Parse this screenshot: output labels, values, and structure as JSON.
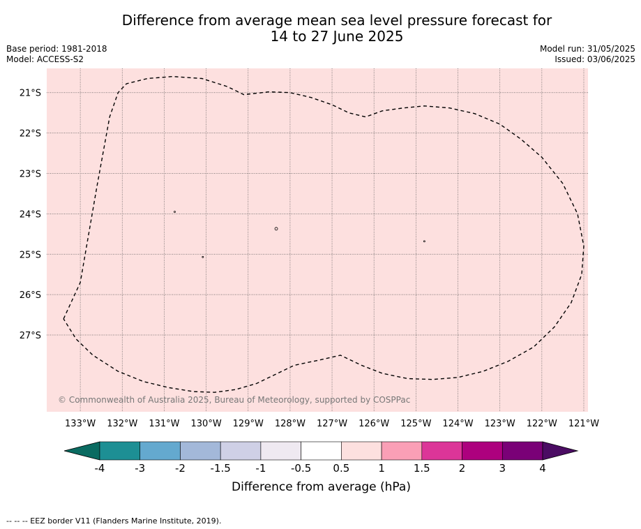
{
  "title_line1": "Difference from average mean sea level pressure forecast for",
  "title_line2": "14 to 27 June 2025",
  "info_left": {
    "base_period": "Base period: 1981-2018",
    "model": "Model: ACCESS-S2"
  },
  "info_right": {
    "model_run": "Model run: 31/05/2025",
    "issued": "Issued: 03/06/2025"
  },
  "map": {
    "background_color": "#fde0df",
    "lon_range": [
      -133.8,
      -120.9
    ],
    "lat_range": [
      -28.9,
      -20.4
    ],
    "lon_ticks": [
      {
        "value": -133,
        "label": "133°W"
      },
      {
        "value": -132,
        "label": "132°W"
      },
      {
        "value": -131,
        "label": "131°W"
      },
      {
        "value": -130,
        "label": "130°W"
      },
      {
        "value": -129,
        "label": "129°W"
      },
      {
        "value": -128,
        "label": "128°W"
      },
      {
        "value": -127,
        "label": "127°W"
      },
      {
        "value": -126,
        "label": "126°W"
      },
      {
        "value": -125,
        "label": "125°W"
      },
      {
        "value": -124,
        "label": "124°W"
      },
      {
        "value": -123,
        "label": "123°W"
      },
      {
        "value": -122,
        "label": "122°W"
      },
      {
        "value": -121,
        "label": "121°W"
      }
    ],
    "lat_ticks": [
      {
        "value": -21,
        "label": "21°S"
      },
      {
        "value": -22,
        "label": "22°S"
      },
      {
        "value": -23,
        "label": "23°S"
      },
      {
        "value": -24,
        "label": "24°S"
      },
      {
        "value": -25,
        "label": "25°S"
      },
      {
        "value": -26,
        "label": "26°S"
      },
      {
        "value": -27,
        "label": "27°S"
      }
    ],
    "eez_border": [
      [
        -133.4,
        -26.6
      ],
      [
        -133.0,
        -25.7
      ],
      [
        -132.6,
        -23.3
      ],
      [
        -132.3,
        -21.6
      ],
      [
        -132.1,
        -21.0
      ],
      [
        -131.9,
        -20.78
      ],
      [
        -131.4,
        -20.65
      ],
      [
        -130.8,
        -20.6
      ],
      [
        -130.1,
        -20.65
      ],
      [
        -129.5,
        -20.85
      ],
      [
        -129.1,
        -21.05
      ],
      [
        -128.5,
        -20.98
      ],
      [
        -128.0,
        -21.0
      ],
      [
        -127.5,
        -21.12
      ],
      [
        -127.0,
        -21.3
      ],
      [
        -126.6,
        -21.5
      ],
      [
        -126.2,
        -21.6
      ],
      [
        -125.8,
        -21.45
      ],
      [
        -125.3,
        -21.38
      ],
      [
        -124.8,
        -21.33
      ],
      [
        -124.2,
        -21.38
      ],
      [
        -123.6,
        -21.52
      ],
      [
        -123.0,
        -21.78
      ],
      [
        -122.5,
        -22.15
      ],
      [
        -122.0,
        -22.6
      ],
      [
        -121.5,
        -23.25
      ],
      [
        -121.15,
        -24.0
      ],
      [
        -121.0,
        -24.8
      ],
      [
        -121.05,
        -25.5
      ],
      [
        -121.3,
        -26.2
      ],
      [
        -121.7,
        -26.8
      ],
      [
        -122.2,
        -27.3
      ],
      [
        -122.8,
        -27.65
      ],
      [
        -123.4,
        -27.9
      ],
      [
        -124.0,
        -28.05
      ],
      [
        -124.6,
        -28.1
      ],
      [
        -125.2,
        -28.08
      ],
      [
        -125.8,
        -27.95
      ],
      [
        -126.3,
        -27.75
      ],
      [
        -126.8,
        -27.5
      ],
      [
        -127.3,
        -27.62
      ],
      [
        -127.9,
        -27.75
      ],
      [
        -128.3,
        -27.95
      ],
      [
        -128.8,
        -28.2
      ],
      [
        -129.3,
        -28.35
      ],
      [
        -129.8,
        -28.42
      ],
      [
        -130.3,
        -28.4
      ],
      [
        -130.9,
        -28.3
      ],
      [
        -131.5,
        -28.15
      ],
      [
        -132.1,
        -27.9
      ],
      [
        -132.7,
        -27.5
      ],
      [
        -133.1,
        -27.1
      ],
      [
        -133.4,
        -26.6
      ]
    ],
    "islands": [
      {
        "lon": -130.75,
        "lat": -23.95,
        "r": 1
      },
      {
        "lon": -128.33,
        "lat": -24.37,
        "r": 2
      },
      {
        "lon": -124.8,
        "lat": -24.68,
        "r": 1
      },
      {
        "lon": -130.08,
        "lat": -25.07,
        "r": 1
      }
    ],
    "copyright": "© Commonwealth of Australia 2025, Bureau of Meteorology, supported by COSPPac"
  },
  "colorbar": {
    "label": "Difference from average (hPa)",
    "tick_labels": [
      "-4",
      "-3",
      "-2",
      "-1.5",
      "-1",
      "-0.5",
      "0.5",
      "1",
      "1.5",
      "2",
      "3",
      "4"
    ],
    "under_color": "#0a6b61",
    "over_color": "#4b0c63",
    "bins": [
      "#1d8f94",
      "#64a9cf",
      "#a3b8d9",
      "#cfd0e6",
      "#efe9f1",
      "#ffffff",
      "#fde0df",
      "#fa9fb6",
      "#dc3598",
      "#ad017e",
      "#7a0177"
    ]
  },
  "footer": "--  --  -- EEZ border V11 (Flanders Marine Institute, 2019)."
}
